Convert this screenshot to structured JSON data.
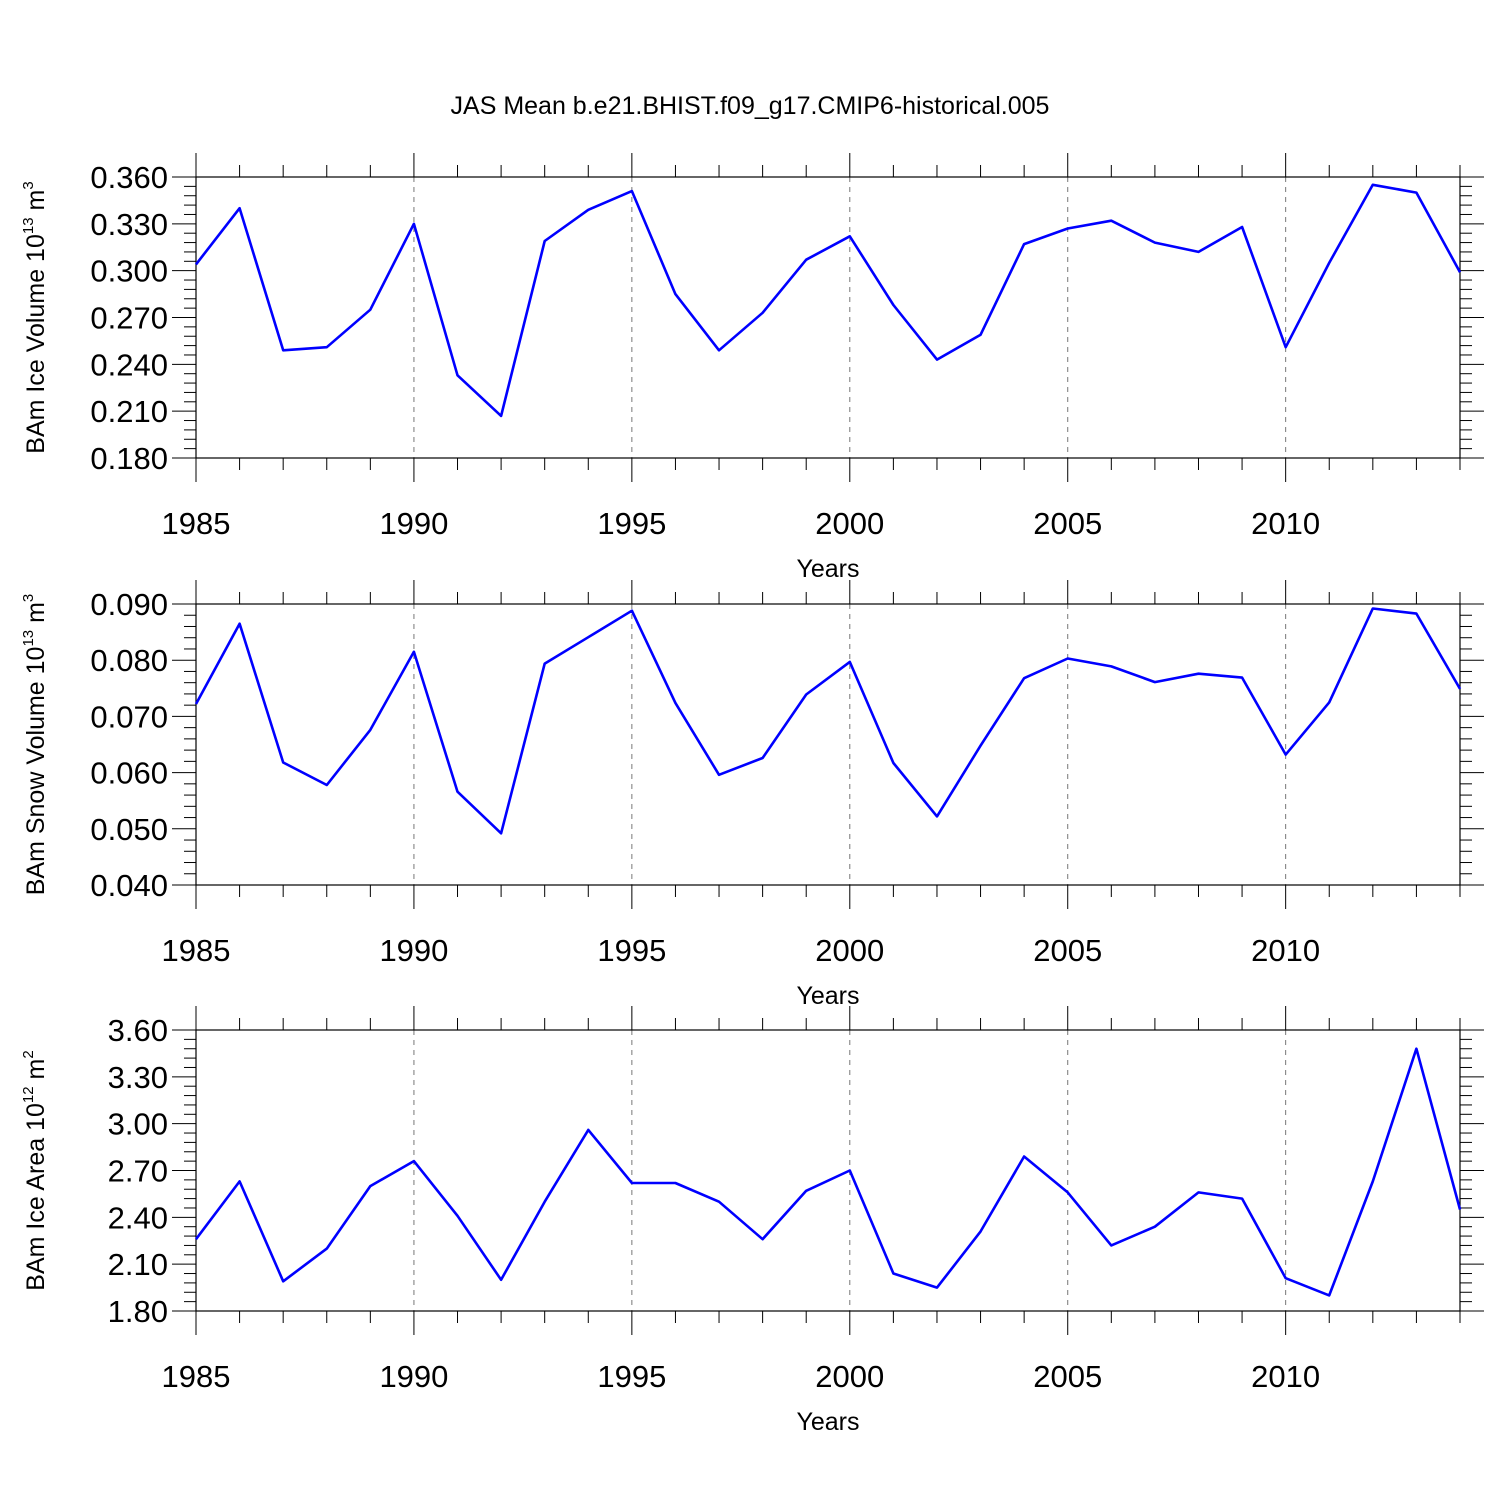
{
  "title": "JAS Mean b.e21.BHIST.f09_g17.CMIP6-historical.005",
  "chart_data": [
    {
      "type": "line",
      "ylabel": "BAm Ice Volume 10",
      "ylabel_exp": "13",
      "ylabel_unit": " m",
      "ylabel_unit_exp": "3",
      "xlabel": "Years",
      "xlim": [
        1985,
        2014
      ],
      "ylim": [
        0.18,
        0.36
      ],
      "x_ticks": [
        1985,
        1990,
        1995,
        2000,
        2005,
        2010
      ],
      "y_ticks": [
        "0.180",
        "0.210",
        "0.240",
        "0.270",
        "0.300",
        "0.330",
        "0.360"
      ],
      "x": [
        1985,
        1986,
        1987,
        1988,
        1989,
        1990,
        1991,
        1992,
        1993,
        1994,
        1995,
        1996,
        1997,
        1998,
        1999,
        2000,
        2001,
        2002,
        2003,
        2004,
        2005,
        2006,
        2007,
        2008,
        2009,
        2010,
        2011,
        2012,
        2013,
        2014
      ],
      "values": [
        0.304,
        0.34,
        0.249,
        0.251,
        0.275,
        0.33,
        0.233,
        0.207,
        0.319,
        0.339,
        0.351,
        0.285,
        0.249,
        0.273,
        0.307,
        0.322,
        0.278,
        0.243,
        0.259,
        0.317,
        0.327,
        0.332,
        0.318,
        0.312,
        0.328,
        0.251,
        0.305,
        0.355,
        0.35,
        0.299
      ],
      "color": "#0000ff",
      "grid": "vertical dashed at major x ticks"
    },
    {
      "type": "line",
      "ylabel": "BAm Snow Volume 10",
      "ylabel_exp": "13",
      "ylabel_unit": " m",
      "ylabel_unit_exp": "3",
      "xlabel": "Years",
      "xlim": [
        1985,
        2014
      ],
      "ylim": [
        0.04,
        0.09
      ],
      "x_ticks": [
        1985,
        1990,
        1995,
        2000,
        2005,
        2010
      ],
      "y_ticks": [
        "0.040",
        "0.050",
        "0.060",
        "0.070",
        "0.080",
        "0.090"
      ],
      "x": [
        1985,
        1986,
        1987,
        1988,
        1989,
        1990,
        1991,
        1992,
        1993,
        1994,
        1995,
        1996,
        1997,
        1998,
        1999,
        2000,
        2001,
        2002,
        2003,
        2004,
        2005,
        2006,
        2007,
        2008,
        2009,
        2010,
        2011,
        2012,
        2013,
        2014
      ],
      "values": [
        0.0722,
        0.0865,
        0.0618,
        0.0578,
        0.0676,
        0.0815,
        0.0566,
        0.0492,
        0.0794,
        0.0841,
        0.0888,
        0.0724,
        0.0596,
        0.0626,
        0.0739,
        0.0797,
        0.0617,
        0.0522,
        0.0648,
        0.0768,
        0.0803,
        0.0789,
        0.0761,
        0.0776,
        0.0769,
        0.0632,
        0.0725,
        0.0892,
        0.0883,
        0.0749
      ],
      "color": "#0000ff",
      "grid": "vertical dashed at major x ticks"
    },
    {
      "type": "line",
      "ylabel": "BAm Ice Area 10",
      "ylabel_exp": "12",
      "ylabel_unit": " m",
      "ylabel_unit_exp": "2",
      "xlabel": "Years",
      "xlim": [
        1985,
        2014
      ],
      "ylim": [
        1.8,
        3.6
      ],
      "x_ticks": [
        1985,
        1990,
        1995,
        2000,
        2005,
        2010
      ],
      "y_ticks": [
        "1.80",
        "2.10",
        "2.40",
        "2.70",
        "3.00",
        "3.30",
        "3.60"
      ],
      "x": [
        1985,
        1986,
        1987,
        1988,
        1989,
        1990,
        1991,
        1992,
        1993,
        1994,
        1995,
        1996,
        1997,
        1998,
        1999,
        2000,
        2001,
        2002,
        2003,
        2004,
        2005,
        2006,
        2007,
        2008,
        2009,
        2010,
        2011,
        2012,
        2013,
        2014
      ],
      "values": [
        2.26,
        2.63,
        1.99,
        2.2,
        2.6,
        2.76,
        2.41,
        2.0,
        2.5,
        2.96,
        2.62,
        2.62,
        2.5,
        2.26,
        2.57,
        2.7,
        2.04,
        1.95,
        2.31,
        2.79,
        2.56,
        2.22,
        2.34,
        2.56,
        2.52,
        2.01,
        1.9,
        2.63,
        3.48,
        2.45
      ],
      "color": "#0000ff",
      "grid": "vertical dashed at major x ticks"
    }
  ]
}
